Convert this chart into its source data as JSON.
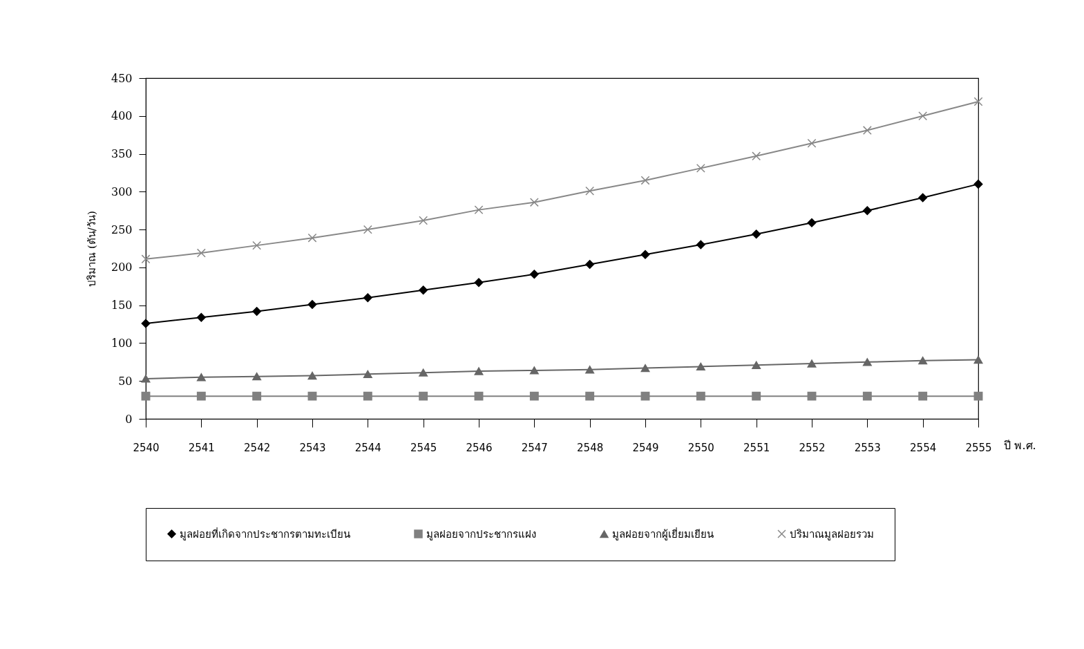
{
  "chart_data": {
    "type": "line",
    "xlabel": "ปี พ.ศ.",
    "ylabel": "ปริมาณ (ตัน/วัน)",
    "categories": [
      "2540",
      "2541",
      "2542",
      "2543",
      "2544",
      "2545",
      "2546",
      "2547",
      "2548",
      "2549",
      "2550",
      "2551",
      "2552",
      "2553",
      "2554",
      "2555"
    ],
    "ylim": [
      0,
      450
    ],
    "yticks": [
      0,
      50,
      100,
      150,
      200,
      250,
      300,
      350,
      400,
      450
    ],
    "grid": false,
    "legend": "bottom",
    "series": [
      {
        "name": "มูลฝอยที่เกิดจากประชากรตามทะเบียน",
        "color": "#000000",
        "marker": "diamond",
        "values": [
          126,
          134,
          142,
          151,
          160,
          170,
          180,
          191,
          204,
          217,
          230,
          244,
          259,
          275,
          292,
          310
        ]
      },
      {
        "name": "มูลฝอยจากประชากรแฝง",
        "color": "#808080",
        "marker": "square",
        "values": [
          30,
          30,
          30,
          30,
          30,
          30,
          30,
          30,
          30,
          30,
          30,
          30,
          30,
          30,
          30,
          30
        ]
      },
      {
        "name": "มูลฝอยจากผู้เยี่ยมเยียน",
        "color": "#666666",
        "marker": "triangle",
        "values": [
          53,
          55,
          56,
          57,
          59,
          61,
          63,
          64,
          65,
          67,
          69,
          71,
          73,
          75,
          77,
          78
        ]
      },
      {
        "name": "ปริมาณมูลฝอยรวม",
        "color": "#888888",
        "marker": "cross",
        "values": [
          211,
          219,
          229,
          239,
          250,
          262,
          276,
          286,
          301,
          315,
          331,
          347,
          364,
          381,
          400,
          419
        ]
      }
    ]
  }
}
